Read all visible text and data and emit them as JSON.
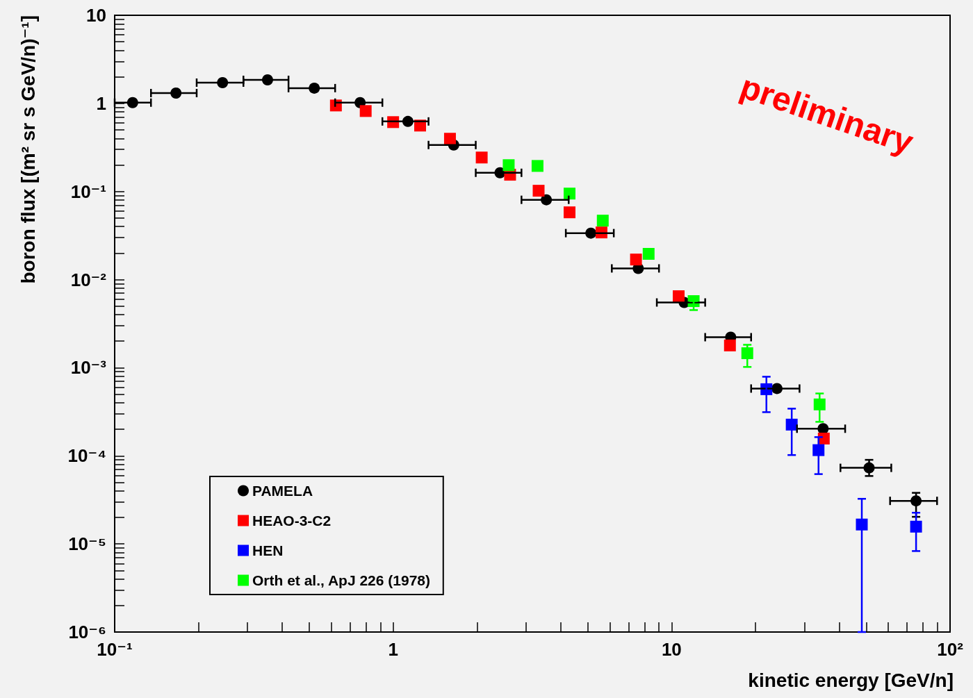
{
  "chart_data": {
    "type": "scatter",
    "xlabel": "kinetic energy [GeV/n]",
    "ylabel": "boron flux [(m² sr s GeV/n)⁻¹]",
    "annotations": [
      "preliminary"
    ],
    "log": "xy",
    "xlim": [
      0.1,
      100
    ],
    "ylim": [
      1e-06,
      10
    ],
    "grid": false,
    "legend": "bottom left",
    "xticks": [
      {
        "value": 0.1,
        "label": "10⁻¹"
      },
      {
        "value": 0.2,
        "label": null
      },
      {
        "value": 0.3,
        "label": null
      },
      {
        "value": 0.4,
        "label": null
      },
      {
        "value": 0.5,
        "label": null
      },
      {
        "value": 0.6,
        "label": null
      },
      {
        "value": 0.7,
        "label": null
      },
      {
        "value": 0.8,
        "label": null
      },
      {
        "value": 0.9,
        "label": null
      },
      1,
      {
        "value": 2,
        "label": null
      },
      {
        "value": 3,
        "label": null
      },
      {
        "value": 4,
        "label": null
      },
      {
        "value": 5,
        "label": null
      },
      {
        "value": 6,
        "label": null
      },
      {
        "value": 7,
        "label": null
      },
      {
        "value": 8,
        "label": null
      },
      {
        "value": 9,
        "label": null
      },
      10,
      {
        "value": 20,
        "label": null
      },
      {
        "value": 30,
        "label": null
      },
      {
        "value": 40,
        "label": null
      },
      {
        "value": 50,
        "label": null
      },
      {
        "value": 60,
        "label": null
      },
      {
        "value": 70,
        "label": null
      },
      {
        "value": 80,
        "label": null
      },
      {
        "value": 90,
        "label": null
      },
      {
        "value": 100,
        "label": "10²"
      }
    ],
    "yticks": [
      {
        "value": 1e-06,
        "label": "10⁻⁶"
      },
      {
        "value": 2e-06,
        "label": null
      },
      {
        "value": 3e-06,
        "label": null
      },
      {
        "value": 4e-06,
        "label": null
      },
      {
        "value": 5e-06,
        "label": null
      },
      {
        "value": 6e-06,
        "label": null
      },
      {
        "value": 7e-06,
        "label": null
      },
      {
        "value": 8e-06,
        "label": null
      },
      {
        "value": 9e-06,
        "label": null
      },
      {
        "value": 1e-05,
        "label": "10⁻⁵"
      },
      {
        "value": 2e-05,
        "label": null
      },
      {
        "value": 3e-05,
        "label": null
      },
      {
        "value": 4e-05,
        "label": null
      },
      {
        "value": 5e-05,
        "label": null
      },
      {
        "value": 6e-05,
        "label": null
      },
      {
        "value": 7e-05,
        "label": null
      },
      {
        "value": 8e-05,
        "label": null
      },
      {
        "value": 9e-05,
        "label": null
      },
      {
        "value": 0.0001,
        "label": "10⁻⁴"
      },
      {
        "value": 0.0002,
        "label": null
      },
      {
        "value": 0.0003,
        "label": null
      },
      {
        "value": 0.0004,
        "label": null
      },
      {
        "value": 0.0005,
        "label": null
      },
      {
        "value": 0.0006,
        "label": null
      },
      {
        "value": 0.0007,
        "label": null
      },
      {
        "value": 0.0008,
        "label": null
      },
      {
        "value": 0.0009,
        "label": null
      },
      {
        "value": 0.001,
        "label": "10⁻³"
      },
      {
        "value": 0.002,
        "label": null
      },
      {
        "value": 0.003,
        "label": null
      },
      {
        "value": 0.004,
        "label": null
      },
      {
        "value": 0.005,
        "label": null
      },
      {
        "value": 0.006,
        "label": null
      },
      {
        "value": 0.007,
        "label": null
      },
      {
        "value": 0.008,
        "label": null
      },
      {
        "value": 0.009,
        "label": null
      },
      {
        "value": 0.01,
        "label": "10⁻²"
      },
      {
        "value": 0.02,
        "label": null
      },
      {
        "value": 0.03,
        "label": null
      },
      {
        "value": 0.04,
        "label": null
      },
      {
        "value": 0.05,
        "label": null
      },
      {
        "value": 0.06,
        "label": null
      },
      {
        "value": 0.07,
        "label": null
      },
      {
        "value": 0.08,
        "label": null
      },
      {
        "value": 0.09,
        "label": null
      },
      {
        "value": 0.1,
        "label": "10⁻¹"
      },
      {
        "value": 0.2,
        "label": null
      },
      {
        "value": 0.3,
        "label": null
      },
      {
        "value": 0.4,
        "label": null
      },
      {
        "value": 0.5,
        "label": null
      },
      {
        "value": 0.6,
        "label": null
      },
      {
        "value": 0.7,
        "label": null
      },
      {
        "value": 0.8,
        "label": null
      },
      {
        "value": 0.9,
        "label": null
      },
      1,
      {
        "value": 2,
        "label": null
      },
      {
        "value": 3,
        "label": null
      },
      {
        "value": 4,
        "label": null
      },
      {
        "value": 5,
        "label": null
      },
      {
        "value": 6,
        "label": null
      },
      {
        "value": 7,
        "label": null
      },
      {
        "value": 8,
        "label": null
      },
      {
        "value": 9,
        "label": null
      },
      10
    ],
    "series": [
      {
        "name": "PAMELA",
        "color": "#000000",
        "marker": "circle",
        "x": [
          0.116,
          0.166,
          0.244,
          0.354,
          0.521,
          0.761,
          1.13,
          1.65,
          2.42,
          3.55,
          5.13,
          7.59,
          11.1,
          16.3,
          23.9,
          35.0,
          51.2,
          75.5
        ],
        "values": [
          1.02,
          1.31,
          1.72,
          1.85,
          1.49,
          1.02,
          0.624,
          0.337,
          0.163,
          0.0805,
          0.0337,
          0.0134,
          0.0055,
          0.00222,
          0.00058,
          0.000203,
          7.3e-05,
          3.08e-05
        ],
        "errors": [
          null,
          null,
          null,
          null,
          null,
          null,
          null,
          null,
          null,
          null,
          null,
          null,
          null,
          null,
          null,
          null,
          [
            5.9e-05,
            9e-05
          ],
          [
            2.03e-05,
            3.8e-05
          ]
        ],
        "xerrors": [
          [
            0.1,
            0.135
          ],
          [
            0.135,
            0.197
          ],
          [
            0.197,
            0.29
          ],
          [
            0.29,
            0.421
          ],
          [
            0.421,
            0.619
          ],
          [
            0.619,
            0.915
          ],
          [
            0.915,
            1.34
          ],
          [
            1.34,
            1.98
          ],
          [
            1.98,
            2.89
          ],
          [
            2.89,
            4.27
          ],
          [
            4.17,
            6.2
          ],
          [
            6.1,
            9.01
          ],
          [
            8.85,
            13.2
          ],
          [
            13.2,
            19.3
          ],
          [
            19.3,
            28.8
          ],
          [
            28.2,
            42.0
          ],
          [
            40.4,
            61.5
          ],
          [
            60.9,
            89.8
          ]
        ]
      },
      {
        "name": "HEAO-3-C2",
        "color": "#ff0000",
        "marker": "square",
        "x": [
          0.623,
          0.797,
          1.0,
          1.25,
          1.6,
          2.08,
          2.63,
          3.33,
          4.3,
          5.6,
          7.45,
          10.6,
          16.2,
          35.2
        ],
        "values": [
          0.947,
          0.819,
          0.613,
          0.56,
          0.397,
          0.243,
          0.155,
          0.102,
          0.058,
          0.0343,
          0.0169,
          0.00648,
          0.00179,
          0.000157
        ]
      },
      {
        "name": "HEN",
        "color": "#0000ff",
        "marker": "square",
        "x": [
          21.9,
          27.0,
          33.7,
          48.2,
          75.5
        ],
        "values": [
          0.00057,
          0.000226,
          0.000116,
          1.66e-05,
          1.57e-05
        ],
        "errors": [
          [
            0.000313,
            0.00079
          ],
          [
            0.000102,
            0.000343
          ],
          [
            6.2e-05,
            0.000163
          ],
          [
            1e-06,
            3.25e-05
          ],
          [
            8.3e-06,
            2.26e-05
          ]
        ]
      },
      {
        "name": "Orth et al., ApJ 226 (1978)",
        "color": "#00ff00",
        "marker": "square",
        "x": [
          2.6,
          3.3,
          4.3,
          5.66,
          8.27,
          12.0,
          18.7,
          34.0
        ],
        "values": [
          0.199,
          0.195,
          0.0947,
          0.0467,
          0.0196,
          0.0057,
          0.00146,
          0.000383
        ],
        "errors": [
          null,
          null,
          null,
          null,
          null,
          [
            0.00451,
            0.0057
          ],
          [
            0.00102,
            0.00182
          ],
          [
            0.000243,
            0.00051
          ]
        ]
      }
    ]
  }
}
